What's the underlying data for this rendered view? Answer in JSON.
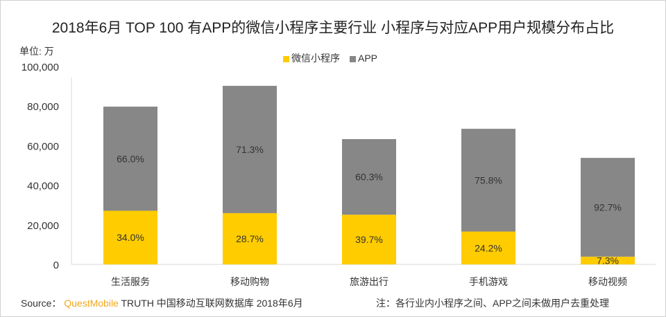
{
  "chart_data": {
    "type": "bar",
    "stacked": true,
    "title": "2018年6月 TOP 100 有APP的微信小程序主要行业 小程序与对应APP用户规模分布占比",
    "ylabel": "单位: 万",
    "xlabel": "",
    "ylim": [
      0,
      100000
    ],
    "yticks": [
      "0",
      "20,000",
      "40,000",
      "60,000",
      "80,000",
      "100,000"
    ],
    "grid": false,
    "legend_position": "top",
    "categories": [
      "生活服务",
      "移动购物",
      "旅游出行",
      "手机游戏",
      "移动视频"
    ],
    "series": [
      {
        "name": "微信小程序",
        "color": "#ffcc00",
        "values": [
          27100,
          25900,
          25100,
          16600,
          3900
        ],
        "labels": [
          "34.0%",
          "28.7%",
          "39.7%",
          "24.2%",
          "7.3%"
        ]
      },
      {
        "name": "APP",
        "color": "#878787",
        "values": [
          52600,
          64300,
          38200,
          51900,
          49900
        ],
        "labels": [
          "66.0%",
          "71.3%",
          "60.3%",
          "75.8%",
          "92.7%"
        ]
      }
    ]
  },
  "footer": {
    "source_prefix": "Source：",
    "source_brand": "QuestMobile",
    "source_rest": "TRUTH 中国移动互联网数据库 2018年6月",
    "note": "注：各行业内小程序之间、APP之间未做用户去重处理"
  }
}
